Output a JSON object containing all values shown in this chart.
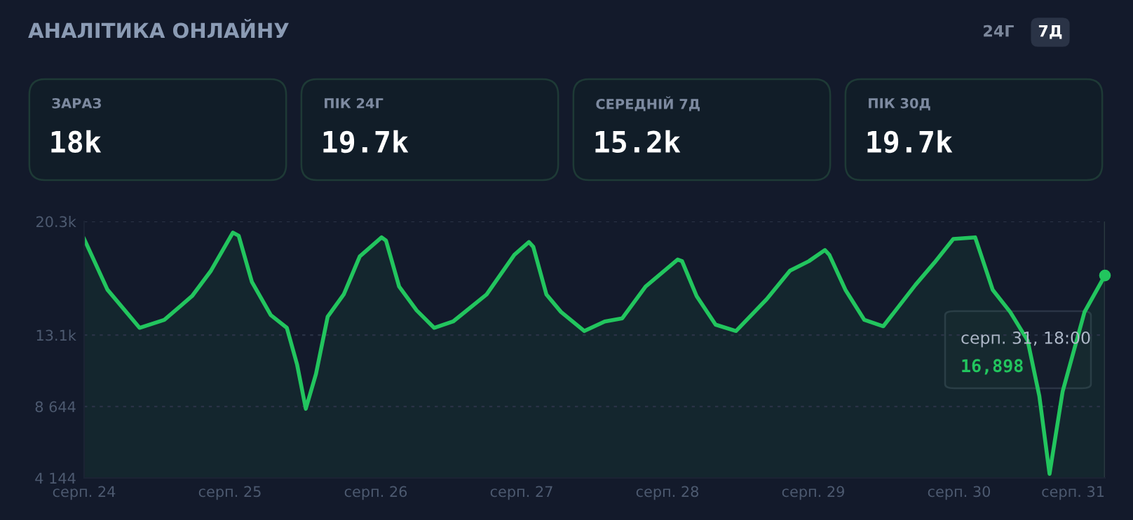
{
  "chart_data": [
    {
      "type": "other",
      "title": "АНАЛІТИКА ОНЛАЙНУ",
      "annotations": [
        "24Г",
        "7Д"
      ]
    },
    {
      "type": "other",
      "title": "ЗАРАЗ",
      "annotations": [
        "18k"
      ]
    },
    {
      "type": "other",
      "title": "ПІК 24Г",
      "annotations": [
        "19.7k"
      ]
    },
    {
      "type": "other",
      "title": "СЕРЕДНІЙ 7Д",
      "annotations": [
        "15.2k"
      ]
    },
    {
      "type": "other",
      "title": "ПІК 30Д",
      "annotations": [
        "19.7k"
      ]
    },
    {
      "type": "area",
      "x": [
        24.0,
        24.16,
        24.38,
        24.55,
        24.74,
        24.87,
        25.02,
        25.06,
        25.15,
        25.28,
        25.39,
        25.46,
        25.52,
        25.59,
        25.67,
        25.78,
        25.89,
        26.04,
        26.07,
        26.16,
        26.28,
        26.4,
        26.53,
        26.76,
        26.95,
        27.05,
        27.08,
        27.17,
        27.27,
        27.43,
        27.57,
        27.69,
        27.85,
        28.07,
        28.1,
        28.2,
        28.33,
        28.47,
        28.68,
        28.84,
        28.97,
        29.08,
        29.11,
        29.22,
        29.35,
        29.48,
        29.7,
        29.83,
        29.96,
        30.11,
        30.23,
        30.35,
        30.47,
        30.55,
        30.62,
        30.71,
        30.86,
        31.0
      ],
      "series": [
        {
          "color": "#22c55e",
          "values": [
            19200,
            16000,
            13600,
            14100,
            15600,
            17200,
            19600,
            19400,
            16500,
            14400,
            13600,
            11300,
            8500,
            10700,
            14300,
            15700,
            18100,
            19300,
            19100,
            16200,
            14700,
            13600,
            14000,
            15700,
            18200,
            19000,
            18700,
            15700,
            14600,
            13400,
            14000,
            14200,
            16200,
            17900,
            17800,
            15600,
            13800,
            13400,
            15400,
            17200,
            17800,
            18500,
            18200,
            16000,
            14100,
            13700,
            16300,
            17700,
            19200,
            19300,
            16000,
            14600,
            12800,
            9300,
            4400,
            9600,
            14600,
            16898
          ]
        }
      ],
      "xlim": [
        24,
        31
      ],
      "xticks": [
        {
          "value": 24,
          "label": "серп. 24"
        },
        {
          "value": 25,
          "label": "серп. 25"
        },
        {
          "value": 26,
          "label": "серп. 26"
        },
        {
          "value": 27,
          "label": "серп. 27"
        },
        {
          "value": 28,
          "label": "серп. 28"
        },
        {
          "value": 29,
          "label": "серп. 29"
        },
        {
          "value": 30,
          "label": "серп. 30"
        },
        {
          "value": 31,
          "label": "серп. 31"
        }
      ],
      "ylim": [
        4144,
        20300
      ],
      "yticks": [
        {
          "value": 4144,
          "label": "4 144"
        },
        {
          "value": 8644,
          "label": "8 644"
        },
        {
          "value": 13144,
          "label": "13.1k"
        },
        {
          "value": 20300,
          "label": "20.3k"
        }
      ],
      "grid": "y",
      "annotations": [
        "серп. 31, 18:00",
        "16,898"
      ]
    }
  ]
}
